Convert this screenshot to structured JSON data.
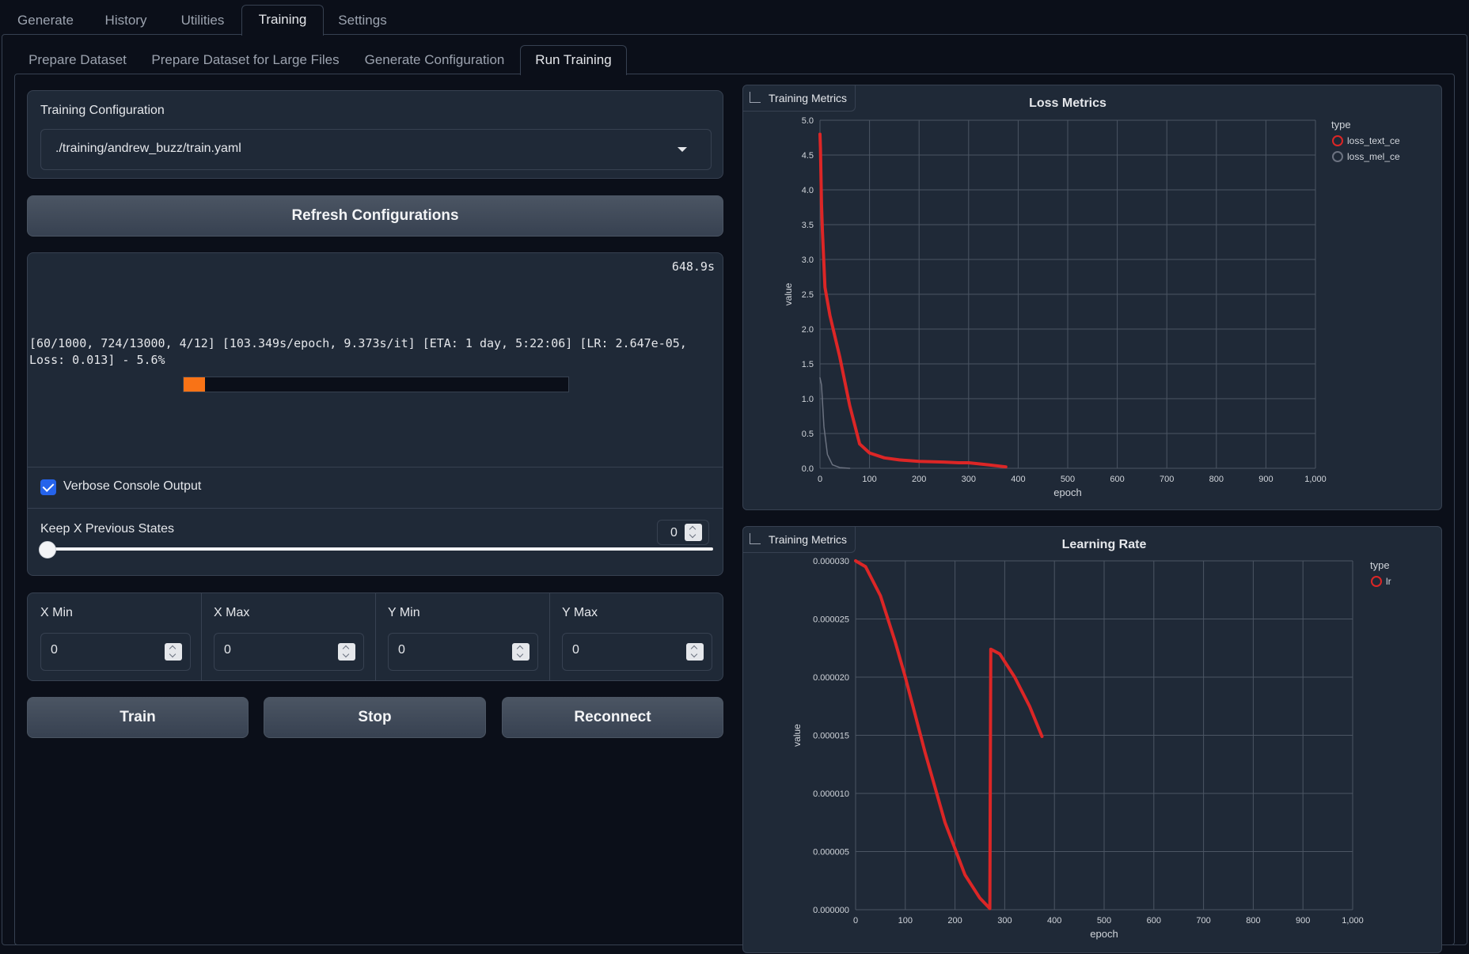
{
  "top_tabs": [
    {
      "label": "Generate"
    },
    {
      "label": "History"
    },
    {
      "label": "Utilities"
    },
    {
      "label": "Training",
      "active": true
    },
    {
      "label": "Settings"
    }
  ],
  "sub_tabs": [
    {
      "label": "Prepare Dataset"
    },
    {
      "label": "Prepare Dataset for Large Files"
    },
    {
      "label": "Generate Configuration"
    },
    {
      "label": "Run Training",
      "active": true
    }
  ],
  "config": {
    "label": "Training Configuration",
    "selected": "./training/andrew_buzz/train.yaml",
    "refresh_label": "Refresh Configurations"
  },
  "progress": {
    "elapsed": "648.9s",
    "text": "[60/1000, 724/13000, 4/12] [103.349s/epoch, 9.373s/it] [ETA: 1 day, 5:22:06] [LR: 2.647e-05, Loss: 0.013] - 5.6%",
    "fraction": 0.056
  },
  "verbose": {
    "label": "Verbose Console Output",
    "checked": true
  },
  "keep_states": {
    "label": "Keep X Previous States",
    "value": "0"
  },
  "ranges": [
    {
      "label": "X Min",
      "value": "0"
    },
    {
      "label": "X Max",
      "value": "0"
    },
    {
      "label": "Y Min",
      "value": "0"
    },
    {
      "label": "Y Max",
      "value": "0"
    }
  ],
  "buttons": {
    "train": "Train",
    "stop": "Stop",
    "reconnect": "Reconnect"
  },
  "colors": {
    "series_red": "#dc2626",
    "series_gray": "#6b7280",
    "progress": "#f97316",
    "accent": "#2563eb"
  },
  "chart_data": [
    {
      "chip_label": "Training Metrics",
      "type": "line",
      "title": "Loss Metrics",
      "xlabel": "epoch",
      "ylabel": "value",
      "xlim": [
        0,
        1000
      ],
      "ylim": [
        0,
        5
      ],
      "x_ticks": [
        "0",
        "100",
        "200",
        "300",
        "400",
        "500",
        "600",
        "700",
        "800",
        "900",
        "1,000"
      ],
      "y_ticks": [
        "0.0",
        "0.5",
        "1.0",
        "1.5",
        "2.0",
        "2.5",
        "3.0",
        "3.5",
        "4.0",
        "4.5",
        "5.0"
      ],
      "legend_title": "type",
      "legend_position": "right",
      "series": [
        {
          "name": "loss_text_ce",
          "color": "#dc2626",
          "points": [
            [
              0,
              4.8
            ],
            [
              1,
              4.6
            ],
            [
              3,
              3.8
            ],
            [
              5,
              3.4
            ],
            [
              10,
              2.6
            ],
            [
              20,
              2.2
            ],
            [
              40,
              1.6
            ],
            [
              60,
              0.9
            ],
            [
              80,
              0.35
            ],
            [
              100,
              0.22
            ],
            [
              130,
              0.15
            ],
            [
              160,
              0.12
            ],
            [
              200,
              0.1
            ],
            [
              250,
              0.09
            ],
            [
              280,
              0.08
            ],
            [
              300,
              0.08
            ],
            [
              340,
              0.05
            ],
            [
              375,
              0.02
            ]
          ]
        },
        {
          "name": "loss_mel_ce",
          "color": "#6b7280",
          "points": [
            [
              0,
              1.3
            ],
            [
              3,
              1.2
            ],
            [
              8,
              0.6
            ],
            [
              15,
              0.2
            ],
            [
              25,
              0.05
            ],
            [
              40,
              0.01
            ],
            [
              60,
              0.0
            ]
          ]
        }
      ]
    },
    {
      "chip_label": "Training Metrics",
      "type": "line",
      "title": "Learning Rate",
      "xlabel": "epoch",
      "ylabel": "value",
      "xlim": [
        0,
        1000
      ],
      "ylim": [
        0,
        3e-05
      ],
      "x_ticks": [
        "0",
        "100",
        "200",
        "300",
        "400",
        "500",
        "600",
        "700",
        "800",
        "900",
        "1,000"
      ],
      "y_ticks": [
        "0.000000",
        "0.000005",
        "0.000010",
        "0.000015",
        "0.000020",
        "0.000025",
        "0.000030"
      ],
      "legend_title": "type",
      "legend_position": "right",
      "series": [
        {
          "name": "lr",
          "color": "#dc2626",
          "points": [
            [
              0,
              3e-05
            ],
            [
              20,
              2.95e-05
            ],
            [
              50,
              2.7e-05
            ],
            [
              80,
              2.3e-05
            ],
            [
              100,
              2e-05
            ],
            [
              140,
              1.35e-05
            ],
            [
              180,
              7.5e-06
            ],
            [
              220,
              3e-06
            ],
            [
              250,
              1e-06
            ],
            [
              268,
              2e-07
            ],
            [
              270,
              1e-07
            ],
            [
              272,
              2.24e-05
            ],
            [
              290,
              2.2e-05
            ],
            [
              320,
              2e-05
            ],
            [
              350,
              1.75e-05
            ],
            [
              375,
              1.49e-05
            ]
          ]
        }
      ]
    }
  ]
}
